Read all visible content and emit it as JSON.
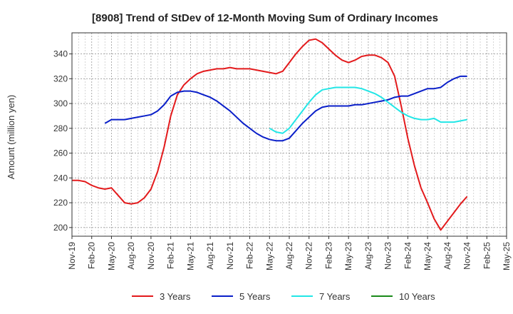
{
  "chart_data": {
    "type": "line",
    "title": "[8908]  Trend of StDev of 12-Month Moving Sum of Ordinary Incomes",
    "ylabel": "Amount (million yen)",
    "xlabel": "",
    "ylim": [
      193,
      357
    ],
    "yticks": [
      200,
      220,
      240,
      260,
      280,
      300,
      320,
      340
    ],
    "x_tick_labels": [
      "Nov-19",
      "Feb-20",
      "May-20",
      "Aug-20",
      "Nov-20",
      "Feb-21",
      "May-21",
      "Aug-21",
      "Nov-21",
      "Feb-22",
      "May-22",
      "Aug-22",
      "Nov-22",
      "Feb-23",
      "May-23",
      "Aug-23",
      "Nov-23",
      "Feb-24",
      "May-24",
      "Aug-24",
      "Nov-24",
      "Feb-25",
      "May-25"
    ],
    "x_start": "Nov-19",
    "grid": true,
    "legend_position": "bottom",
    "series": [
      {
        "name": "3 Years",
        "color": "#e31a1c",
        "start": "Nov-19",
        "values": [
          238,
          238,
          237,
          234,
          232,
          231,
          232,
          226,
          220,
          219,
          220,
          224,
          231,
          245,
          265,
          290,
          307,
          315,
          320,
          324,
          326,
          327,
          328,
          328,
          329,
          328,
          328,
          328,
          327,
          326,
          325,
          324,
          326,
          333,
          340,
          346,
          351,
          352,
          349,
          344,
          339,
          335,
          333,
          335,
          338,
          339,
          339,
          337,
          333,
          322,
          298,
          272,
          250,
          232,
          220,
          207,
          198,
          205,
          212,
          219,
          225
        ],
        "start_index": 0
      },
      {
        "name": "5 Years",
        "color": "#0a1fc9",
        "start": "Oct-20",
        "values": [
          284,
          287,
          287,
          287,
          288,
          289,
          290,
          291,
          294,
          299,
          306,
          309,
          310,
          310,
          309,
          307,
          305,
          302,
          298,
          294,
          289,
          284,
          280,
          276,
          273,
          271,
          270,
          270,
          272,
          278,
          284,
          289,
          294,
          297,
          298,
          298,
          298,
          298,
          299,
          299,
          300,
          301,
          302,
          303,
          305,
          306,
          306,
          308,
          310,
          312,
          312,
          313,
          317,
          320,
          322,
          322
        ],
        "start_index": 5
      },
      {
        "name": "7 Years",
        "color": "#22e6e6",
        "start": "Mar-22",
        "values": [
          280,
          277,
          276,
          280,
          287,
          294,
          301,
          307,
          311,
          312,
          313,
          313,
          313,
          313,
          312,
          310,
          308,
          305,
          301,
          297,
          293,
          290,
          288,
          287,
          287,
          288,
          285,
          285,
          285,
          286,
          287
        ],
        "start_index": 30
      },
      {
        "name": "10 Years",
        "color": "#1a8a1a",
        "values": []
      }
    ]
  }
}
